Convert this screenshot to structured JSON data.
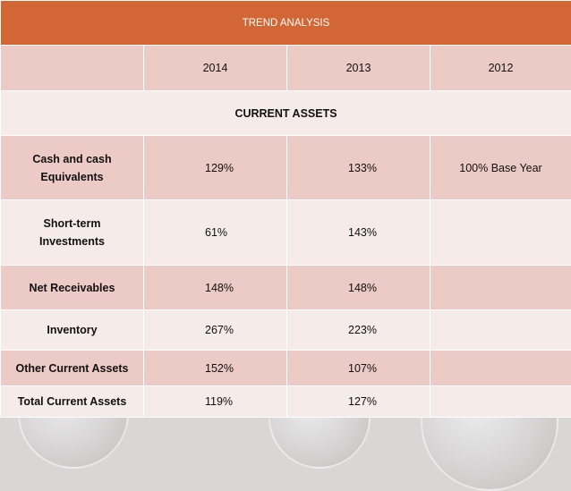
{
  "title": "TREND ANALYSIS",
  "years": [
    "2014",
    "2013",
    "2012"
  ],
  "section_label": "CURRENT ASSETS",
  "rows": [
    {
      "label": "Cash and  cash Equivalents",
      "v2014": "129%",
      "v2013": "133%",
      "v2012": "100% Base Year"
    },
    {
      "label": "Short-term Investments",
      "v2014": "61%",
      "v2013": "143%",
      "v2012": ""
    },
    {
      "label": "Net Receivables",
      "v2014": "148%",
      "v2013": "148%",
      "v2012": ""
    },
    {
      "label": "Inventory",
      "v2014": "267%",
      "v2013": "223%",
      "v2012": ""
    },
    {
      "label": "Other Current Assets",
      "v2014": "152%",
      "v2013": "107%",
      "v2012": ""
    },
    {
      "label": "Total Current Assets",
      "v2014": "119%",
      "v2013": "127%",
      "v2012": ""
    }
  ],
  "colors": {
    "header": "#d26634",
    "row_light": "#f5ebe9",
    "row_dark": "#eccac5"
  }
}
